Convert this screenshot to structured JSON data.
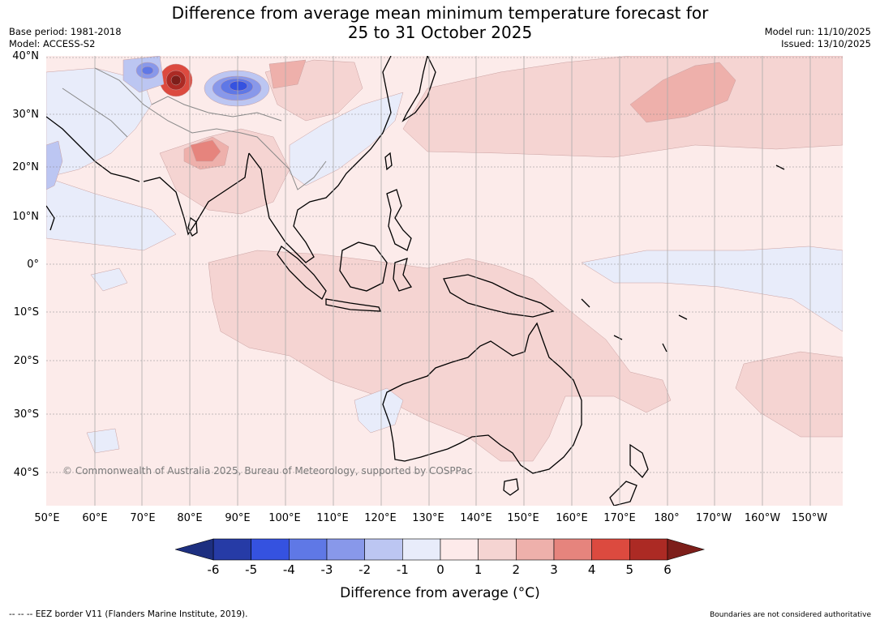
{
  "title": {
    "line1": "Difference from average mean minimum temperature forecast for",
    "line2": "25 to 31 October 2025"
  },
  "meta": {
    "base_period": "Base period: 1981-2018",
    "model": "Model: ACCESS-S2",
    "model_run": "Model run: 11/10/2025",
    "issued": "Issued: 13/10/2025"
  },
  "map": {
    "latitudes": [
      "40°N",
      "30°N",
      "20°N",
      "10°N",
      "0°",
      "10°S",
      "20°S",
      "30°S",
      "40°S"
    ],
    "longitudes": [
      "50°E",
      "60°E",
      "70°E",
      "80°E",
      "90°E",
      "100°E",
      "110°E",
      "120°E",
      "130°E",
      "140°E",
      "150°E",
      "160°E",
      "170°E",
      "180°",
      "170°W",
      "160°W",
      "150°W"
    ],
    "copyright": "© Commonwealth of Australia 2025, Bureau of Meteorology, supported by COSPPac"
  },
  "colorbar": {
    "ticks": [
      "-6",
      "-5",
      "-4",
      "-3",
      "-2",
      "-1",
      "0",
      "1",
      "2",
      "3",
      "4",
      "5",
      "6"
    ],
    "colors": [
      "#263ba6",
      "#3552e0",
      "#5f78e6",
      "#8898ea",
      "#bcc6f2",
      "#e8ecfa",
      "#fdeaea",
      "#f5d4d2",
      "#eeb0ab",
      "#e6847d",
      "#dc4a3f",
      "#ac2a24"
    ],
    "low_color": "#1d2f80",
    "high_color": "#7d1e1a",
    "label": "Difference from average (°C)"
  },
  "footer": {
    "eez": "--  --  -- EEZ border V11 (Flanders Marine Institute, 2019).",
    "disclaimer": "Boundaries are not considered authoritative"
  }
}
